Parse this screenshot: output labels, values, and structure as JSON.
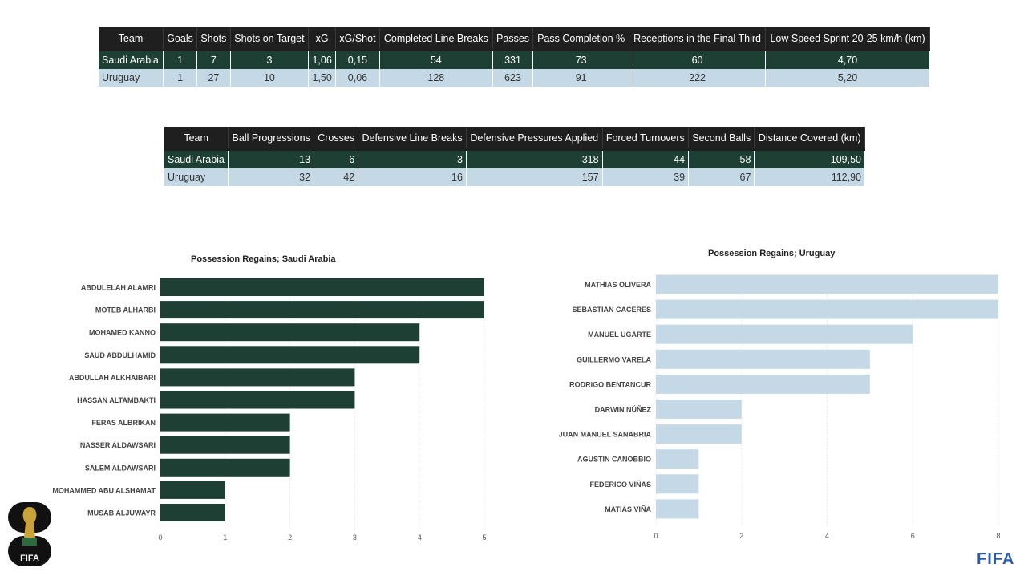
{
  "table1": {
    "headers": [
      "Team",
      "Goals",
      "Shots",
      "Shots on Target",
      "xG",
      "xG/Shot",
      "Completed Line Breaks",
      "Passes",
      "Pass Completion %",
      "Receptions in the Final Third",
      "Low Speed Sprint 20-25 km/h (km)"
    ],
    "rows": [
      [
        "Saudi Arabia",
        "1",
        "7",
        "3",
        "1,06",
        "0,15",
        "54",
        "331",
        "73",
        "60",
        "4,70"
      ],
      [
        "Uruguay",
        "1",
        "27",
        "10",
        "1,50",
        "0,06",
        "128",
        "623",
        "91",
        "222",
        "5,20"
      ]
    ]
  },
  "table2": {
    "headers": [
      "Team",
      "Ball Progressions",
      "Crosses",
      "Defensive Line Breaks",
      "Defensive Pressures Applied",
      "Forced Turnovers",
      "Second Balls",
      "Distance Covered (km)"
    ],
    "rows": [
      [
        "Saudi Arabia",
        "13",
        "6",
        "3",
        "318",
        "44",
        "58",
        "109,50"
      ],
      [
        "Uruguay",
        "32",
        "42",
        "16",
        "157",
        "39",
        "67",
        "112,90"
      ]
    ]
  },
  "chart_data": [
    {
      "type": "bar",
      "orientation": "horizontal",
      "title": "Possession Regains; Saudi Arabia",
      "color": "#1e4034",
      "categories": [
        "ABDULELAH ALAMRI",
        "MOTEB ALHARBI",
        "MOHAMED KANNO",
        "SAUD ABDULHAMID",
        "ABDULLAH ALKHAIBARI",
        "HASSAN ALTAMBAKTI",
        "FERAS ALBRIKAN",
        "NASSER ALDAWSARI",
        "SALEM ALDAWSARI",
        "MOHAMMED ABU ALSHAMAT",
        "MUSAB ALJUWAYR"
      ],
      "values": [
        5,
        5,
        4,
        4,
        3,
        3,
        2,
        2,
        2,
        1,
        1
      ],
      "xlim": [
        0,
        5
      ],
      "xticks": [
        "0",
        "1",
        "2",
        "3",
        "4",
        "5"
      ],
      "grid": true
    },
    {
      "type": "bar",
      "orientation": "horizontal",
      "title": "Possession Regains; Uruguay",
      "color": "#c5d8e6",
      "categories": [
        "MATHIAS OLIVERA",
        "SEBASTIAN CACERES",
        "MANUEL UGARTE",
        "GUILLERMO VARELA",
        "RODRIGO BENTANCUR",
        "DARWIN NÚÑEZ",
        "JUAN MANUEL SANABRIA",
        "AGUSTIN CANOBBIO",
        "FEDERICO VIÑAS",
        "MATIAS VIÑA"
      ],
      "values": [
        8,
        8,
        6,
        5,
        5,
        2,
        2,
        1,
        1,
        1
      ],
      "xlim": [
        0,
        8
      ],
      "xticks": [
        "0",
        "2",
        "4",
        "6",
        "8"
      ],
      "grid": true
    }
  ],
  "logos": {
    "left_text": "FIFA",
    "right_text": "FIFA"
  }
}
